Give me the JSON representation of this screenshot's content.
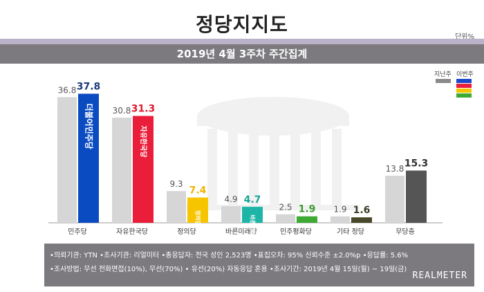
{
  "header": {
    "title": "정당지지도",
    "unit": "단위%"
  },
  "banner": {
    "text": "2019년 4월 3주차 주간집계"
  },
  "legend": {
    "prev_label": "지난주",
    "curr_label": "이번주"
  },
  "colors": {
    "prev": "#d6d6d6",
    "curr_default": "#555555"
  },
  "chart_data": {
    "type": "bar",
    "categories": [
      "민주당",
      "자유한국당",
      "정의당",
      "바른미래당",
      "민주평화당",
      "기타 정당",
      "무당층"
    ],
    "series": [
      {
        "name": "지난주",
        "values": [
          36.8,
          30.8,
          9.3,
          4.9,
          2.5,
          1.9,
          13.8
        ]
      },
      {
        "name": "이번주",
        "values": [
          37.8,
          31.3,
          7.4,
          4.7,
          1.9,
          1.6,
          15.3
        ]
      }
    ],
    "curr_colors": [
      "#0a4bc2",
      "#ea1e3a",
      "#f7c500",
      "#1fb5a6",
      "#3daa34",
      "#48472a",
      "#555555"
    ],
    "value_label_colors": [
      "#1d3a78",
      "#e0192f",
      "#f2b400",
      "#1aa597",
      "#3a9d2c",
      "#3a3a26",
      "#333333"
    ],
    "ylim": [
      0,
      40
    ],
    "bar_labels": [
      "더불어민주당",
      "자유한국당",
      "정의당",
      "바른미래당",
      "",
      "",
      ""
    ]
  },
  "footer": {
    "line1": "•의뢰기관: YTN  •조사기관: 리얼미터  •총응답자: 전국 성인 2,523명  •표집오차: 95% 신뢰수준 ±2.0%p  •응답률: 5.6%",
    "line2": "•조사방법: 무선 전화면접(10%), 무선(70%) • 유선(20%) 자동응답 혼용  •조사기간: 2019년 4월 15일(월) ~ 19일(금)",
    "logo": "REALMETER"
  }
}
